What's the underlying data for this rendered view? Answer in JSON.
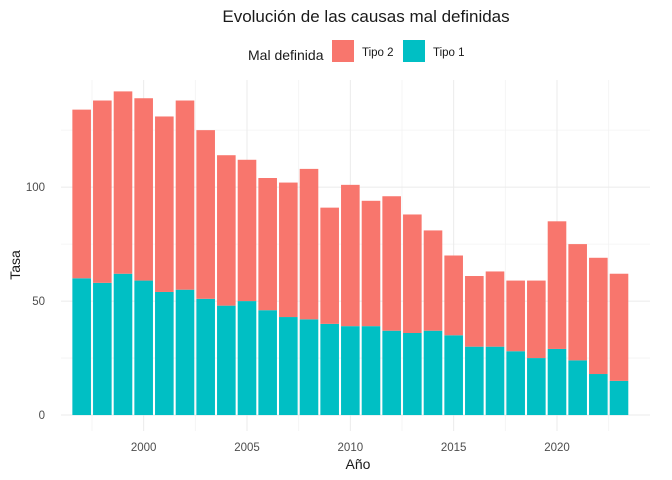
{
  "chart_data": {
    "type": "bar",
    "stacked": true,
    "title": "Evolución de las causas mal definidas",
    "xlabel": "Año",
    "ylabel": "Tasa",
    "legend": {
      "title": "Mal definida",
      "position": "top",
      "entries": [
        {
          "name": "Tipo 2",
          "color": "#F8766D"
        },
        {
          "name": "Tipo 1",
          "color": "#00BFC4"
        }
      ]
    },
    "x": [
      1997,
      1998,
      1999,
      2000,
      2001,
      2002,
      2003,
      2004,
      2005,
      2006,
      2007,
      2008,
      2009,
      2010,
      2011,
      2012,
      2013,
      2014,
      2015,
      2016,
      2017,
      2018,
      2019,
      2020,
      2021,
      2022,
      2023
    ],
    "series": [
      {
        "name": "Tipo 1",
        "color": "#00BFC4",
        "values": [
          60,
          58,
          62,
          59,
          54,
          55,
          51,
          48,
          50,
          46,
          43,
          42,
          40,
          39,
          39,
          37,
          36,
          37,
          35,
          30,
          30,
          28,
          25,
          29,
          24,
          18,
          15
        ]
      },
      {
        "name": "Tipo 2",
        "color": "#F8766D",
        "values": [
          74,
          80,
          80,
          80,
          77,
          83,
          74,
          66,
          62,
          58,
          59,
          66,
          51,
          62,
          55,
          59,
          52,
          44,
          35,
          31,
          33,
          31,
          34,
          56,
          51,
          51,
          47
        ]
      }
    ],
    "xticks": [
      2000,
      2005,
      2010,
      2015,
      2020
    ],
    "yticks": [
      0,
      50,
      100
    ],
    "xlim": [
      1996,
      2024.5
    ],
    "ylim": [
      -7,
      147
    ],
    "grid": true
  }
}
